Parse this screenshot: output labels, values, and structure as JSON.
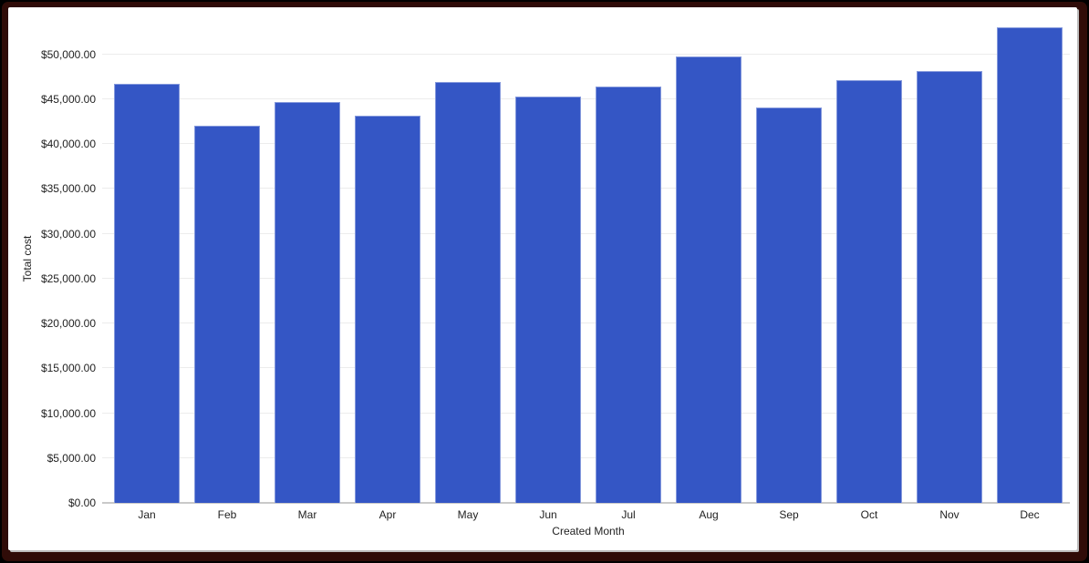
{
  "colors": {
    "frame": "#300c08",
    "card_background": "#ffffff",
    "bar": "#3456c5",
    "gridline": "#ececec",
    "baseline": "#c9c9c9",
    "axis_text": "#1f1f1f"
  },
  "chart_data": {
    "type": "bar",
    "title": "",
    "xlabel": "Created Month",
    "ylabel": "Total cost",
    "categories": [
      "Jan",
      "Feb",
      "Mar",
      "Apr",
      "May",
      "Jun",
      "Jul",
      "Aug",
      "Sep",
      "Oct",
      "Nov",
      "Dec"
    ],
    "series": [
      {
        "name": "Total cost",
        "values": [
          46700,
          42000,
          44700,
          43100,
          46900,
          45300,
          46400,
          49700,
          44100,
          47100,
          48100,
          53000
        ]
      }
    ],
    "ylim": [
      0,
      53200
    ],
    "grid": true,
    "legend_position": "none",
    "y_ticks": [
      {
        "value": 0,
        "label": "$0.00"
      },
      {
        "value": 5000,
        "label": "$5,000.00"
      },
      {
        "value": 10000,
        "label": "$10,000.00"
      },
      {
        "value": 15000,
        "label": "$15,000.00"
      },
      {
        "value": 20000,
        "label": "$20,000.00"
      },
      {
        "value": 25000,
        "label": "$25,000.00"
      },
      {
        "value": 30000,
        "label": "$30,000.00"
      },
      {
        "value": 35000,
        "label": "$35,000.00"
      },
      {
        "value": 40000,
        "label": "$40,000.00"
      },
      {
        "value": 45000,
        "label": "$45,000.00"
      },
      {
        "value": 50000,
        "label": "$50,000.00"
      }
    ]
  }
}
